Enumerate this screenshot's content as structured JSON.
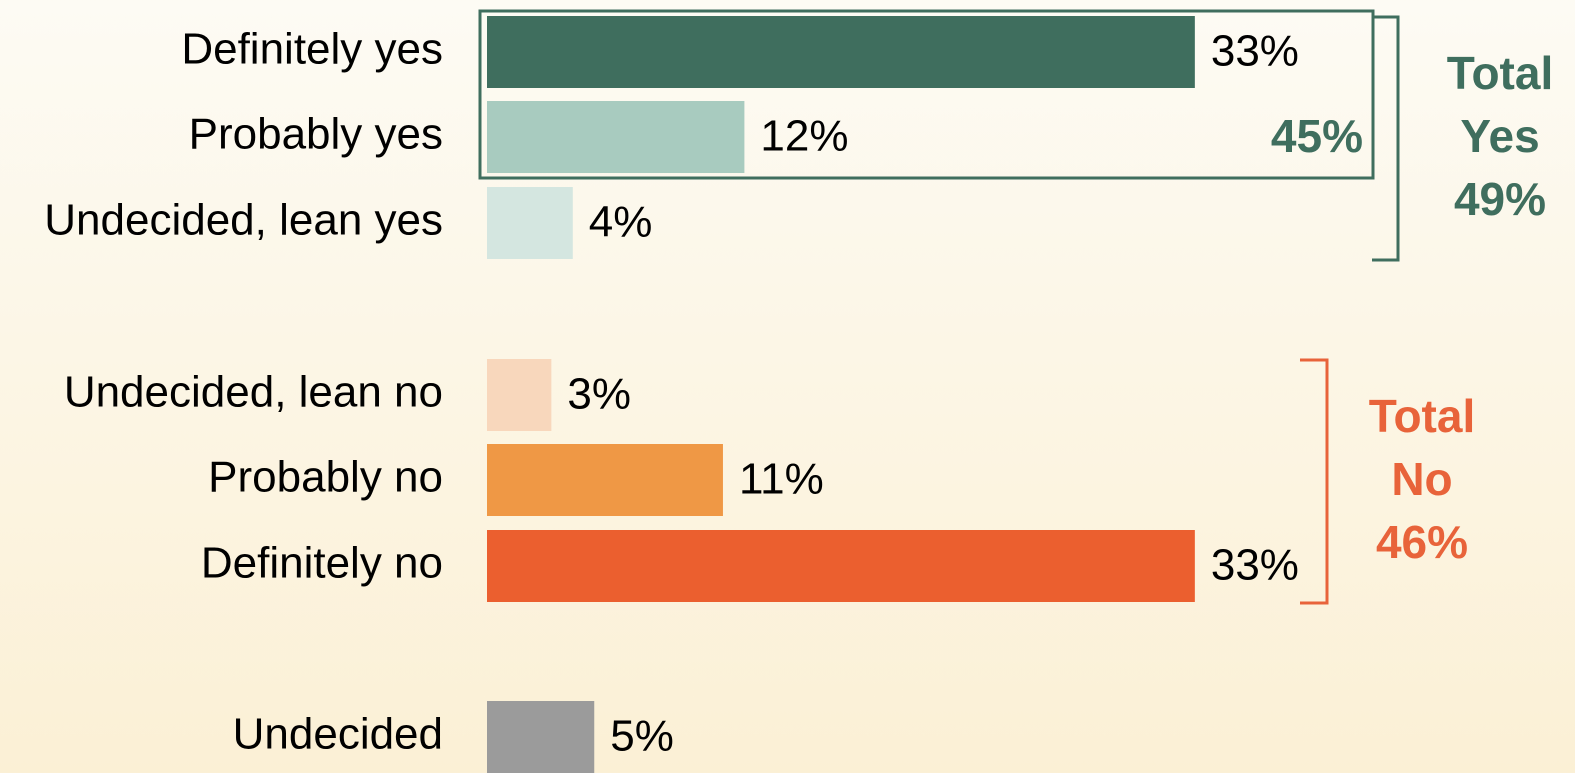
{
  "chart_data": {
    "type": "bar",
    "orientation": "horizontal",
    "categories": [
      "Definitely yes",
      "Probably yes",
      "Undecided, lean yes",
      "Undecided, lean no",
      "Probably no",
      "Definitely no",
      "Undecided"
    ],
    "values": [
      33,
      12,
      4,
      3,
      11,
      33,
      5
    ],
    "value_labels": [
      "33%",
      "12%",
      "4%",
      "3%",
      "11%",
      "33%",
      "5%"
    ],
    "colors": [
      "#3f6e5e",
      "#a8cbbf",
      "#d4e6e0",
      "#f8d7bc",
      "#ef9845",
      "#eb5f2f",
      "#9b9b9b"
    ],
    "annotations": [
      {
        "text": "45%",
        "color": "#3f6e5e"
      },
      {
        "text": [
          "Total",
          "Yes",
          "49%"
        ],
        "color": "#3f6e5e"
      },
      {
        "text": [
          "Total",
          "No",
          "46%"
        ],
        "color": "#e8633a"
      }
    ]
  }
}
